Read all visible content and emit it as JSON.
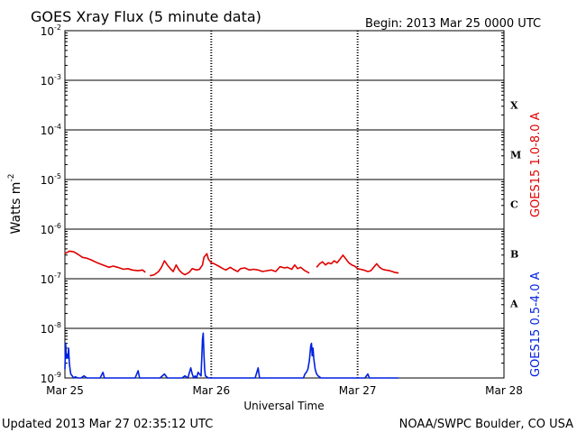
{
  "chart_data": {
    "type": "line",
    "title": "GOES Xray Flux (5 minute data)",
    "begin_label": "Begin:  2013 Mar 25 0000 UTC",
    "ylabel_base": "Watts m",
    "ylabel_exp": "-2",
    "xlabel": "Universal Time",
    "y_scale": "log",
    "ylim": [
      1e-09,
      0.01
    ],
    "xlim": [
      0,
      3
    ],
    "grid": true,
    "y_ticks": [
      {
        "base": "10",
        "exp": "-2",
        "value": 0.01
      },
      {
        "base": "10",
        "exp": "-3",
        "value": 0.001
      },
      {
        "base": "10",
        "exp": "-4",
        "value": 0.0001
      },
      {
        "base": "10",
        "exp": "-5",
        "value": 1e-05
      },
      {
        "base": "10",
        "exp": "-6",
        "value": 1e-06
      },
      {
        "base": "10",
        "exp": "-7",
        "value": 1e-07
      },
      {
        "base": "10",
        "exp": "-8",
        "value": 1e-08
      },
      {
        "base": "10",
        "exp": "-9",
        "value": 1e-09
      }
    ],
    "x_ticks": [
      {
        "label": "Mar 25",
        "value": 0
      },
      {
        "label": "Mar 26",
        "value": 1
      },
      {
        "label": "Mar 27",
        "value": 2
      },
      {
        "label": "Mar 28",
        "value": 3
      }
    ],
    "flare_classes": [
      {
        "label": "X",
        "value": 0.0001
      },
      {
        "label": "M",
        "value": 1e-05
      },
      {
        "label": "C",
        "value": 1e-06
      },
      {
        "label": "B",
        "value": 1e-07
      },
      {
        "label": "A",
        "value": 1e-08
      }
    ],
    "series": [
      {
        "name": "GOES15 1.0-8.0 A",
        "color": "#e00000",
        "points": [
          [
            0.0,
            3.2e-07
          ],
          [
            0.03,
            3.6e-07
          ],
          [
            0.06,
            3.5e-07
          ],
          [
            0.09,
            3.1e-07
          ],
          [
            0.12,
            2.7e-07
          ],
          [
            0.15,
            2.6e-07
          ],
          [
            0.18,
            2.4e-07
          ],
          [
            0.22,
            2.1e-07
          ],
          [
            0.26,
            1.9e-07
          ],
          [
            0.3,
            1.7e-07
          ],
          [
            0.33,
            1.8e-07
          ],
          [
            0.36,
            1.7e-07
          ],
          [
            0.4,
            1.55e-07
          ],
          [
            0.43,
            1.6e-07
          ],
          [
            0.46,
            1.5e-07
          ],
          [
            0.5,
            1.45e-07
          ],
          [
            0.53,
            1.5e-07
          ],
          [
            0.55,
            1.35e-07
          ],
          null,
          [
            0.58,
            1.15e-07
          ],
          [
            0.61,
            1.2e-07
          ],
          [
            0.64,
            1.4e-07
          ],
          [
            0.66,
            1.7e-07
          ],
          [
            0.68,
            2.3e-07
          ],
          [
            0.7,
            1.9e-07
          ],
          [
            0.72,
            1.6e-07
          ],
          [
            0.74,
            1.4e-07
          ],
          [
            0.76,
            1.9e-07
          ],
          [
            0.78,
            1.5e-07
          ],
          [
            0.8,
            1.3e-07
          ],
          [
            0.82,
            1.2e-07
          ],
          [
            0.85,
            1.35e-07
          ],
          [
            0.87,
            1.6e-07
          ],
          [
            0.9,
            1.5e-07
          ],
          [
            0.92,
            1.55e-07
          ],
          [
            0.94,
            1.9e-07
          ],
          [
            0.95,
            2.7e-07
          ],
          [
            0.97,
            3.2e-07
          ],
          [
            0.98,
            2.5e-07
          ],
          [
            1.0,
            2.1e-07
          ],
          [
            1.02,
            2e-07
          ],
          [
            1.05,
            1.8e-07
          ],
          [
            1.08,
            1.6e-07
          ],
          [
            1.1,
            1.5e-07
          ],
          [
            1.13,
            1.7e-07
          ],
          [
            1.15,
            1.55e-07
          ],
          [
            1.18,
            1.4e-07
          ],
          [
            1.2,
            1.6e-07
          ],
          [
            1.23,
            1.65e-07
          ],
          [
            1.26,
            1.5e-07
          ],
          [
            1.29,
            1.55e-07
          ],
          [
            1.32,
            1.5e-07
          ],
          [
            1.35,
            1.4e-07
          ],
          [
            1.38,
            1.45e-07
          ],
          [
            1.41,
            1.5e-07
          ],
          [
            1.44,
            1.4e-07
          ],
          [
            1.47,
            1.75e-07
          ],
          [
            1.5,
            1.65e-07
          ],
          [
            1.52,
            1.7e-07
          ],
          [
            1.55,
            1.55e-07
          ],
          [
            1.57,
            1.9e-07
          ],
          [
            1.59,
            1.6e-07
          ],
          [
            1.61,
            1.7e-07
          ],
          [
            1.64,
            1.45e-07
          ],
          [
            1.67,
            1.3e-07
          ],
          null,
          [
            1.72,
            1.7e-07
          ],
          [
            1.74,
            2e-07
          ],
          [
            1.76,
            2.2e-07
          ],
          [
            1.78,
            1.9e-07
          ],
          [
            1.8,
            2.1e-07
          ],
          [
            1.82,
            2e-07
          ],
          [
            1.84,
            2.3e-07
          ],
          [
            1.86,
            2.1e-07
          ],
          [
            1.88,
            2.5e-07
          ],
          [
            1.9,
            3e-07
          ],
          [
            1.92,
            2.5e-07
          ],
          [
            1.94,
            2.1e-07
          ],
          [
            1.96,
            1.9e-07
          ],
          [
            1.98,
            1.8e-07
          ],
          [
            2.0,
            1.6e-07
          ],
          [
            2.02,
            1.55e-07
          ],
          [
            2.04,
            1.5e-07
          ],
          [
            2.07,
            1.4e-07
          ],
          [
            2.09,
            1.45e-07
          ],
          [
            2.11,
            1.7e-07
          ],
          [
            2.13,
            2e-07
          ],
          [
            2.15,
            1.7e-07
          ],
          [
            2.17,
            1.55e-07
          ],
          [
            2.19,
            1.5e-07
          ],
          [
            2.22,
            1.45e-07
          ],
          [
            2.25,
            1.35e-07
          ],
          [
            2.28,
            1.3e-07
          ]
        ]
      },
      {
        "name": "GOES15 0.5-4.0 A",
        "color": "#0020e0",
        "points": [
          [
            0.0,
            1.5e-09
          ],
          [
            0.005,
            5e-09
          ],
          [
            0.01,
            2.5e-09
          ],
          [
            0.015,
            3e-09
          ],
          [
            0.02,
            2.5e-09
          ],
          [
            0.025,
            4e-09
          ],
          [
            0.03,
            2e-09
          ],
          [
            0.035,
            1.5e-09
          ],
          [
            0.04,
            1.2e-09
          ],
          [
            0.05,
            1.1e-09
          ],
          [
            0.06,
            1e-09
          ],
          [
            0.07,
            1.05e-09
          ],
          [
            0.09,
            1e-09
          ],
          [
            0.11,
            1e-09
          ],
          [
            0.13,
            1.1e-09
          ],
          [
            0.15,
            1e-09
          ],
          [
            0.2,
            1e-09
          ],
          [
            0.24,
            1e-09
          ],
          [
            0.26,
            1.3e-09
          ],
          [
            0.27,
            1e-09
          ],
          [
            0.3,
            1e-09
          ],
          [
            0.35,
            1e-09
          ],
          [
            0.4,
            1e-09
          ],
          [
            0.48,
            1e-09
          ],
          [
            0.5,
            1.4e-09
          ],
          [
            0.51,
            1e-09
          ],
          [
            0.55,
            1e-09
          ],
          [
            0.6,
            1e-09
          ],
          [
            0.65,
            1e-09
          ],
          [
            0.68,
            1.2e-09
          ],
          [
            0.7,
            1e-09
          ],
          [
            0.75,
            1e-09
          ],
          [
            0.8,
            1e-09
          ],
          [
            0.82,
            1.1e-09
          ],
          [
            0.84,
            1e-09
          ],
          [
            0.86,
            1.6e-09
          ],
          [
            0.87,
            1.2e-09
          ],
          [
            0.88,
            1e-09
          ],
          [
            0.89,
            1.1e-09
          ],
          [
            0.9,
            1e-09
          ],
          [
            0.91,
            1.3e-09
          ],
          [
            0.93,
            1.1e-09
          ],
          [
            0.94,
            6e-09
          ],
          [
            0.945,
            8e-09
          ],
          [
            0.95,
            3e-09
          ],
          [
            0.955,
            1.5e-09
          ],
          [
            0.96,
            1.1e-09
          ],
          [
            0.98,
            1e-09
          ],
          [
            1.0,
            1e-09
          ],
          [
            1.02,
            1e-09
          ],
          [
            1.05,
            1e-09
          ],
          [
            1.1,
            1e-09
          ],
          [
            1.15,
            1e-09
          ],
          [
            1.2,
            1e-09
          ],
          [
            1.25,
            1e-09
          ],
          [
            1.3,
            1e-09
          ],
          [
            1.32,
            1.6e-09
          ],
          [
            1.33,
            1e-09
          ],
          [
            1.4,
            1e-09
          ],
          [
            1.5,
            1e-09
          ],
          [
            1.55,
            1e-09
          ],
          [
            1.6,
            1e-09
          ],
          [
            1.63,
            1e-09
          ],
          [
            1.64,
            1.2e-09
          ],
          [
            1.65,
            1.3e-09
          ],
          [
            1.66,
            1.5e-09
          ],
          [
            1.67,
            2.2e-09
          ],
          [
            1.68,
            4.5e-09
          ],
          [
            1.685,
            5e-09
          ],
          [
            1.69,
            2.8e-09
          ],
          [
            1.695,
            4e-09
          ],
          [
            1.7,
            2.5e-09
          ],
          [
            1.71,
            1.5e-09
          ],
          [
            1.72,
            1.2e-09
          ],
          [
            1.73,
            1.1e-09
          ],
          [
            1.75,
            1e-09
          ],
          [
            1.8,
            1e-09
          ],
          [
            1.85,
            1e-09
          ],
          [
            1.9,
            1e-09
          ],
          [
            1.95,
            1e-09
          ],
          [
            2.0,
            1e-09
          ],
          [
            2.05,
            1e-09
          ],
          [
            2.07,
            1.2e-09
          ],
          [
            2.08,
            1e-09
          ],
          [
            2.15,
            1e-09
          ],
          [
            2.2,
            1e-09
          ],
          [
            2.25,
            1e-09
          ],
          [
            2.28,
            1e-09
          ]
        ]
      }
    ]
  },
  "footer": {
    "updated": "Updated 2013 Mar 27 02:35:12 UTC",
    "credit": "NOAA/SWPC Boulder, CO USA"
  }
}
